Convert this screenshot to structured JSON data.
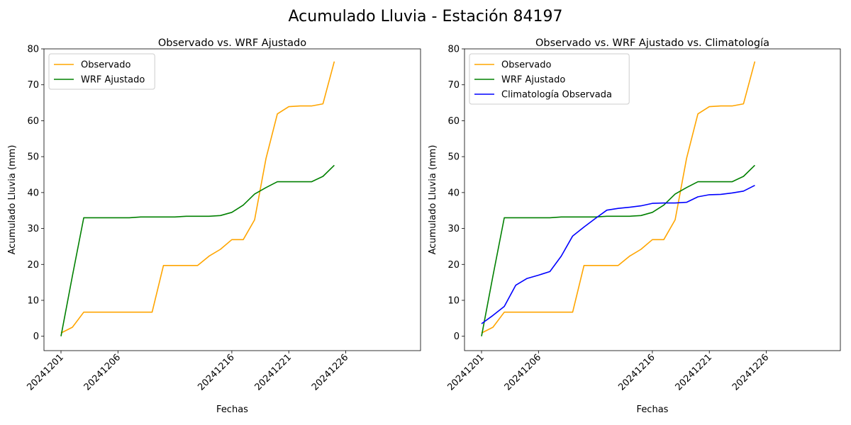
{
  "figure": {
    "suptitle": "Acumulado Lluvia - Estación 84197"
  },
  "chart_data": [
    {
      "type": "line",
      "title": "Observado vs. WRF Ajustado",
      "xlabel": "Fechas",
      "ylabel": "Acumulado Lluvia (mm)",
      "xticks": [
        "20241201",
        "20241206",
        "20241216",
        "20241221",
        "20241226"
      ],
      "ylim": [
        -4,
        80
      ],
      "yticks": [
        0,
        10,
        20,
        30,
        40,
        50,
        60,
        70,
        80
      ],
      "legend_position": "top-left",
      "series": [
        {
          "name": "Observado",
          "color": "#ffa500",
          "values": [
            0.9,
            2.5,
            6.7,
            6.7,
            6.7,
            6.7,
            6.7,
            6.7,
            6.7,
            19.7,
            19.7,
            19.7,
            19.7,
            22.3,
            24.2,
            26.9,
            26.9,
            32.4,
            49.5,
            61.9,
            63.9,
            64.1,
            64.1,
            64.7,
            76.5
          ]
        },
        {
          "name": "WRF Ajustado",
          "color": "#008000",
          "values": [
            0.0,
            16.8,
            33.0,
            33.0,
            33.0,
            33.0,
            33.0,
            33.2,
            33.2,
            33.2,
            33.2,
            33.4,
            33.4,
            33.4,
            33.6,
            34.5,
            36.5,
            39.6,
            41.4,
            43.0,
            43.0,
            43.0,
            43.0,
            44.5,
            47.6
          ]
        }
      ]
    },
    {
      "type": "line",
      "title": "Observado vs. WRF Ajustado vs. Climatología",
      "xlabel": "Fechas",
      "ylabel": "Acumulado Lluvia (mm)",
      "xticks": [
        "20241201",
        "20241206",
        "20241216",
        "20241221",
        "20241226"
      ],
      "ylim": [
        -4,
        80
      ],
      "yticks": [
        0,
        10,
        20,
        30,
        40,
        50,
        60,
        70,
        80
      ],
      "legend_position": "top-left",
      "series": [
        {
          "name": "Observado",
          "color": "#ffa500",
          "values": [
            0.9,
            2.5,
            6.7,
            6.7,
            6.7,
            6.7,
            6.7,
            6.7,
            6.7,
            19.7,
            19.7,
            19.7,
            19.7,
            22.3,
            24.2,
            26.9,
            26.9,
            32.4,
            49.5,
            61.9,
            63.9,
            64.1,
            64.1,
            64.7,
            76.5
          ]
        },
        {
          "name": "WRF Ajustado",
          "color": "#008000",
          "values": [
            0.0,
            16.8,
            33.0,
            33.0,
            33.0,
            33.0,
            33.0,
            33.2,
            33.2,
            33.2,
            33.2,
            33.4,
            33.4,
            33.4,
            33.6,
            34.5,
            36.5,
            39.6,
            41.4,
            43.0,
            43.0,
            43.0,
            43.0,
            44.5,
            47.6
          ]
        },
        {
          "name": "Climatología Observada",
          "color": "#0000ff",
          "values": [
            3.5,
            5.8,
            8.3,
            14.2,
            16.1,
            17.0,
            18.0,
            22.3,
            27.9,
            30.4,
            32.8,
            35.1,
            35.6,
            35.9,
            36.3,
            37.0,
            37.1,
            37.1,
            37.3,
            38.8,
            39.4,
            39.5,
            39.9,
            40.4,
            42.0
          ]
        }
      ]
    }
  ]
}
